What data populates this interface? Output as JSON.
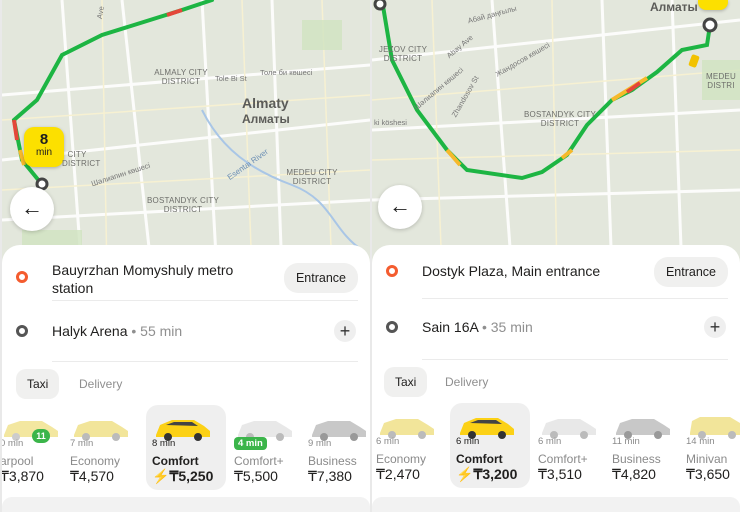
{
  "left": {
    "map": {
      "city_name": "Almaty",
      "city_name_local": "Алматы",
      "districts": [
        "ALMALY CITY DISTRICT",
        "MEDEU CITY DISTRICT",
        "BOSTANDYK CITY DISTRICT",
        "CITY DISTRICT"
      ],
      "streets": [
        "Tole Bi St",
        "Толе би көшесі",
        "Шәлиапин көшесі",
        "Ave"
      ],
      "river": "Esentai River",
      "eta_pin": {
        "num": "8",
        "unit": "min"
      }
    },
    "route": {
      "from": "Bauyrzhan Momyshuly metro station",
      "to": "Halyk Arena",
      "to_time": "• 55 min",
      "entrance_label": "Entrance"
    },
    "tabs": [
      "Taxi",
      "Delivery"
    ],
    "tariffs": [
      {
        "eta": "0 min",
        "name": "arpool",
        "price": "₸3,870",
        "people_badge": "11"
      },
      {
        "eta": "7 min",
        "name": "Economy",
        "price": "₸4,570"
      },
      {
        "eta": "8 min",
        "name": "Comfort",
        "price": "₸5,250",
        "selected": true,
        "surge": "⚡"
      },
      {
        "eta": "4 min",
        "name": "Comfort+",
        "price": "₸5,500",
        "eta_badge": true
      },
      {
        "eta": "9 min",
        "name": "Business",
        "price": "₸7,380"
      }
    ]
  },
  "right": {
    "map": {
      "city_name_local": "Алматы",
      "districts": [
        "BOSTANDYK CITY DISTRICT",
        "MEDEU DISTRI",
        "JEZOV CITY DISTRICT"
      ],
      "streets": [
        "Абай даңғылы",
        "Abay Ave",
        "Шәлиапин көшесі",
        "Жандосов көшесі",
        "Zhandosov St",
        "ki köshesi"
      ]
    },
    "route": {
      "from": "Dostyk Plaza, Main entrance",
      "to": "Sain 16A",
      "to_time": "• 35 min",
      "entrance_label": "Entrance"
    },
    "tabs": [
      "Taxi",
      "Delivery"
    ],
    "tariffs": [
      {
        "eta": "6 min",
        "name": "Economy",
        "price": "₸2,470"
      },
      {
        "eta": "6 min",
        "name": "Comfort",
        "price": "₸3,200",
        "selected": true,
        "surge": "⚡"
      },
      {
        "eta": "6 min",
        "name": "Comfort+",
        "price": "₸3,510"
      },
      {
        "eta": "11 min",
        "name": "Business",
        "price": "₸4,820"
      },
      {
        "eta": "14 min",
        "name": "Minivan",
        "price": "₸3,650"
      }
    ]
  },
  "icons": {
    "back": "arrow-left-icon",
    "add": "plus-icon",
    "surge": "lightning-icon"
  },
  "colors": {
    "accent": "#fce000",
    "route_green": "#1db543",
    "route_yellow": "#f6b92b",
    "route_red": "#e4473a",
    "from_dot": "#f45c2f"
  }
}
